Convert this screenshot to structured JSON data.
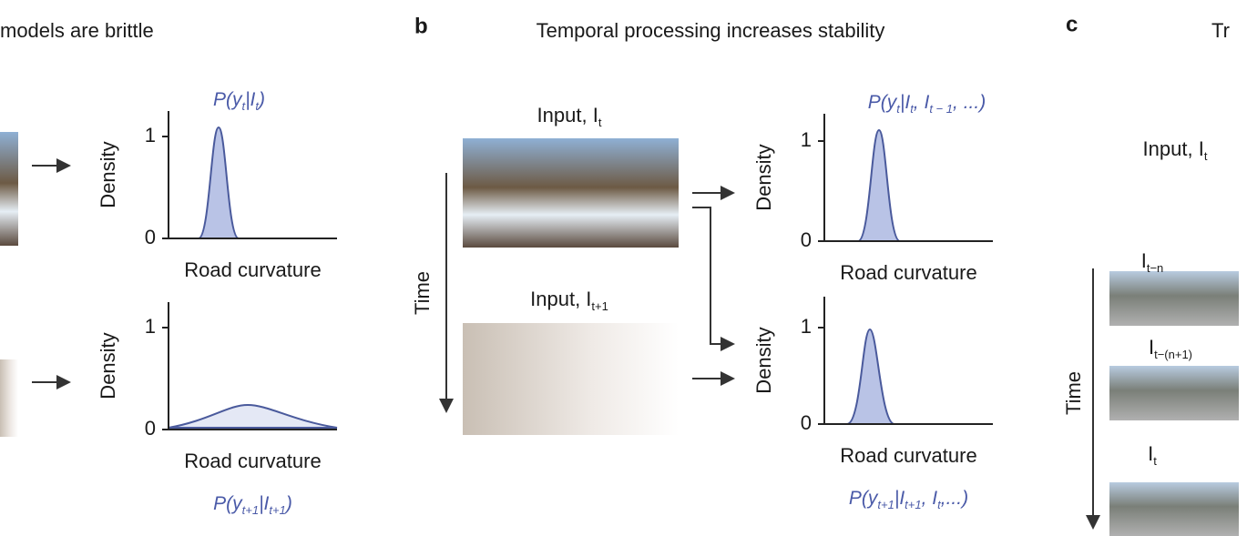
{
  "panel_a": {
    "title": "models are brittle",
    "plots": [
      {
        "title": [
          "P(y",
          "t",
          "|I",
          "t",
          ")"
        ],
        "ylabel": "Density",
        "xlabel": "Road curvature",
        "yticks": [
          0,
          1
        ]
      },
      {
        "caption": [
          "P(y",
          "t+1",
          "|I",
          "t+1",
          ")"
        ],
        "ylabel": "Density",
        "xlabel": "Road curvature",
        "yticks": [
          0,
          1
        ]
      }
    ]
  },
  "panel_b": {
    "letter": "b",
    "title": "Temporal processing increases stability",
    "input_top": [
      "Input, I",
      "t"
    ],
    "input_bottom": [
      "Input, I",
      "t+1"
    ],
    "time_label": "Time",
    "plots": [
      {
        "title": [
          "P(y",
          "t",
          "|I",
          "t",
          ", I",
          "t − 1",
          ", ...)"
        ],
        "ylabel": "Density",
        "xlabel": "Road curvature",
        "yticks": [
          0,
          1
        ]
      },
      {
        "caption": [
          "P(y",
          "t+1",
          "|I",
          "t+1",
          ", I",
          "t",
          ",...)"
        ],
        "ylabel": "Density",
        "xlabel": "Road curvature",
        "yticks": [
          0,
          1
        ]
      }
    ]
  },
  "panel_c": {
    "letter": "c",
    "title": "Tr",
    "input": [
      "Input, I",
      "t"
    ],
    "time_label": "Time",
    "frames": [
      [
        "I",
        "t−n"
      ],
      [
        "I",
        "t−(n+1)"
      ],
      [
        "I",
        "t"
      ]
    ]
  }
}
